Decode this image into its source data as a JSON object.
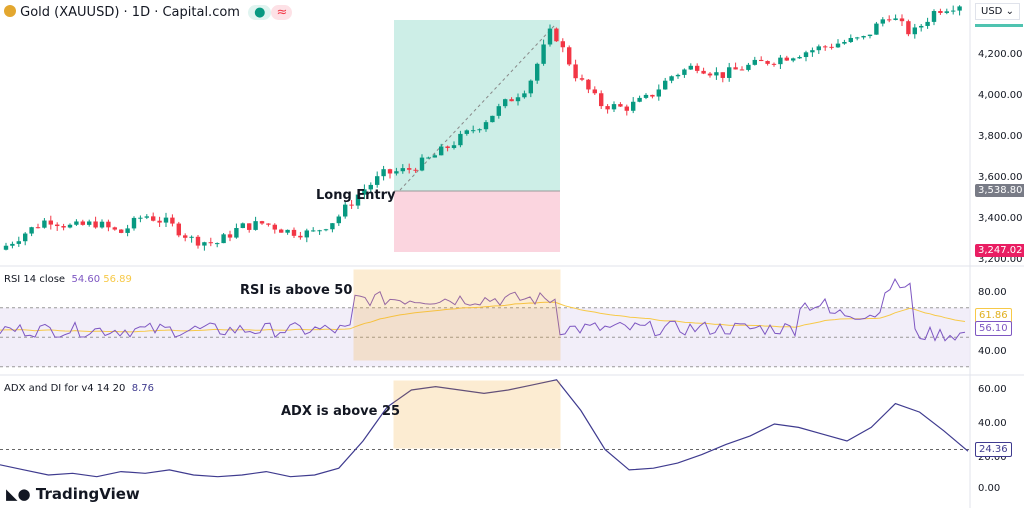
{
  "header": {
    "title": "Gold (XAUUSD) · 1D · Capital.com",
    "currency": "USD"
  },
  "annotations": {
    "long_entry": "Long Entry",
    "rsi_note": "RSI is above 50",
    "adx_note": "ADX is above 25"
  },
  "colors": {
    "up": "#089981",
    "down": "#f23645",
    "rsi": "#7e57c2",
    "rsi_ma": "#f7c948",
    "adx": "#3f3b8f",
    "profit_zone": "#cdeee7",
    "loss_zone": "#fbd5df",
    "highlight": "#f5a623"
  },
  "chart_data": [
    {
      "type": "candlestick",
      "title": "Gold (XAUUSD) · 1D · Capital.com",
      "y_ticks": [
        "4,200.00",
        "4,000.00",
        "3,800.00",
        "3,600.00",
        "3,400.00",
        "3,200.00"
      ],
      "price_tags": {
        "entry": "3,538.80",
        "last": "3,247.02"
      },
      "approx_close_path": [
        3250,
        3330,
        3400,
        3360,
        3380,
        3330,
        3420,
        3380,
        3300,
        3280,
        3360,
        3380,
        3340,
        3330,
        3400,
        3530,
        3620,
        3640,
        3700,
        3780,
        3860,
        3960,
        4050,
        4330,
        4100,
        3960,
        3940,
        3990,
        4100,
        4150,
        4100,
        4140,
        4170,
        4200,
        4230,
        4260,
        4280,
        4400,
        4300,
        4420,
        4450
      ]
    },
    {
      "type": "line",
      "title": "RSI 14 close",
      "values_label": {
        "rsi": "54.60",
        "ma": "56.89"
      },
      "y_ticks": [
        "80.00",
        "40.00"
      ],
      "tags": {
        "ma": "61.86",
        "rsi": "56.10"
      },
      "levels": [
        70,
        50,
        30
      ]
    },
    {
      "type": "line",
      "title": "ADX and DI for v4 14 20",
      "value_label": "8.76",
      "y_ticks": [
        "60.00",
        "40.00",
        "20.00",
        "0.00"
      ],
      "tag": "24.36",
      "level": 25,
      "approx_path": [
        16,
        13,
        10,
        11,
        9,
        12,
        11,
        13,
        10,
        9,
        10,
        12,
        9,
        10,
        14,
        30,
        50,
        60,
        62,
        60,
        58,
        60,
        63,
        66,
        48,
        25,
        13,
        14,
        17,
        22,
        28,
        33,
        40,
        38,
        34,
        30,
        38,
        52,
        47,
        36,
        24
      ]
    }
  ],
  "branding": {
    "logo": "TradingView"
  }
}
